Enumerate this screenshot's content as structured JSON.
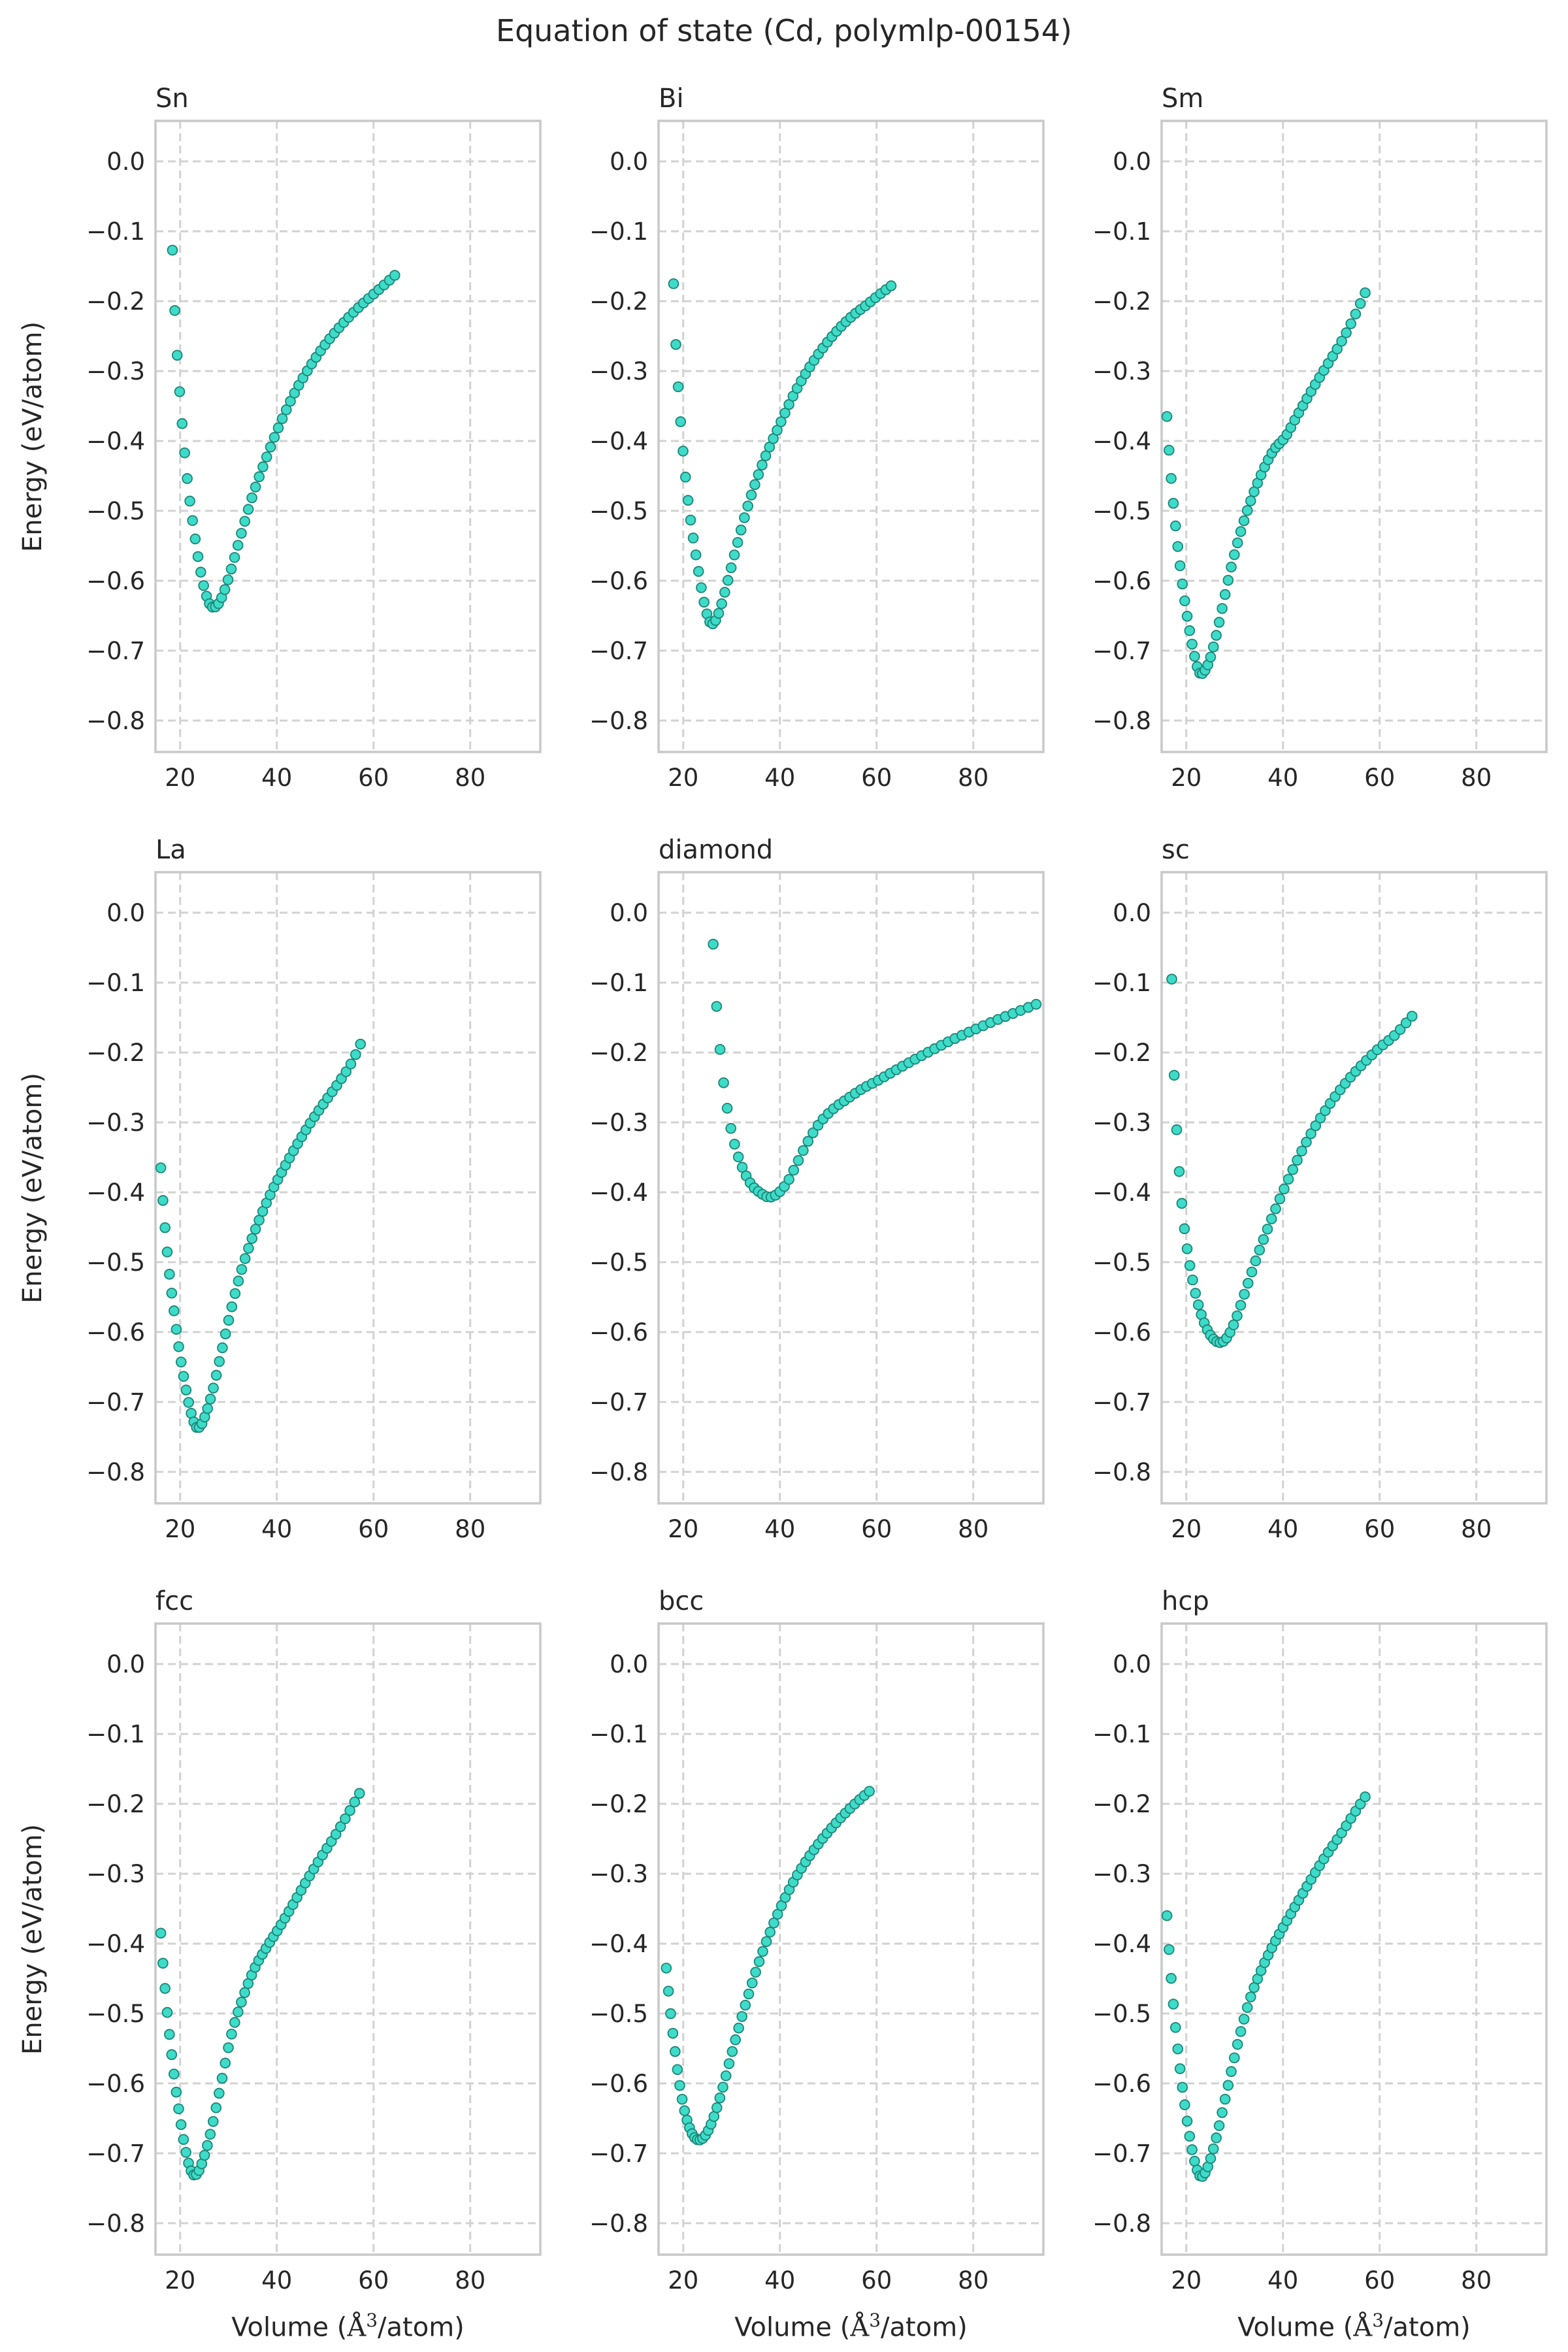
{
  "figure": {
    "title": "Equation of state (Cd, polymlp-00154)",
    "ylabel": "Energy (eV/atom)",
    "xlabel": "Volume (Å³/atom)",
    "xlabel_pre": "Volume (",
    "xlabel_ang": "Å",
    "xlabel_sup": "3",
    "xlabel_post": "/atom)"
  },
  "axes": {
    "xlim": [
      14.9,
      94.5
    ],
    "ylim_top": 0.058,
    "ylim_bottom": -0.845,
    "x_ticks": [
      20,
      40,
      60,
      80
    ],
    "x_tick_labels": [
      "20",
      "40",
      "60",
      "80"
    ],
    "y_ticks": [
      0.0,
      -0.1,
      -0.2,
      -0.3,
      -0.4,
      -0.5,
      -0.6,
      -0.7,
      -0.8
    ],
    "y_tick_labels": [
      "0.0",
      "−0.1",
      "−0.2",
      "−0.3",
      "−0.4",
      "−0.5",
      "−0.6",
      "−0.7",
      "−0.8"
    ],
    "grid": true,
    "grid_color": "#d2d2d2",
    "spine_color": "#c9c9c9",
    "text_color": "#262626"
  },
  "style": {
    "marker_fill": "#3EDBC8",
    "marker_edge": "#1B8577",
    "marker_radius": 7.4,
    "n_markers": 60,
    "marker_spacing": "uniform in cube root of volume"
  },
  "chart_data": [
    {
      "type": "scatter",
      "title": "Sn",
      "points": [
        [
          18.4,
          -0.127
        ],
        [
          18.9,
          -0.215
        ],
        [
          19.5,
          -0.29
        ],
        [
          20.2,
          -0.357
        ],
        [
          21.0,
          -0.422
        ],
        [
          21.9,
          -0.48
        ],
        [
          22.9,
          -0.53
        ],
        [
          23.9,
          -0.574
        ],
        [
          25.0,
          -0.611
        ],
        [
          26.0,
          -0.632
        ],
        [
          26.8,
          -0.638
        ],
        [
          27.8,
          -0.634
        ],
        [
          29.0,
          -0.617
        ],
        [
          30.5,
          -0.585
        ],
        [
          32.5,
          -0.536
        ],
        [
          35.0,
          -0.478
        ],
        [
          38.0,
          -0.421
        ],
        [
          41.0,
          -0.37
        ],
        [
          44.0,
          -0.327
        ],
        [
          47.0,
          -0.292
        ],
        [
          50.0,
          -0.262
        ],
        [
          53.0,
          -0.237
        ],
        [
          56.0,
          -0.215
        ],
        [
          59.0,
          -0.196
        ],
        [
          61.5,
          -0.181
        ],
        [
          64.4,
          -0.163
        ]
      ]
    },
    {
      "type": "scatter",
      "title": "Bi",
      "points": [
        [
          18.0,
          -0.175
        ],
        [
          18.4,
          -0.25
        ],
        [
          18.9,
          -0.315
        ],
        [
          19.5,
          -0.376
        ],
        [
          20.2,
          -0.432
        ],
        [
          21.0,
          -0.485
        ],
        [
          21.9,
          -0.531
        ],
        [
          22.9,
          -0.575
        ],
        [
          23.9,
          -0.616
        ],
        [
          24.8,
          -0.645
        ],
        [
          25.7,
          -0.661
        ],
        [
          26.6,
          -0.658
        ],
        [
          27.6,
          -0.641
        ],
        [
          29.0,
          -0.606
        ],
        [
          31.0,
          -0.552
        ],
        [
          33.5,
          -0.49
        ],
        [
          36.5,
          -0.431
        ],
        [
          40.0,
          -0.376
        ],
        [
          43.0,
          -0.332
        ],
        [
          46.0,
          -0.296
        ],
        [
          49.0,
          -0.266
        ],
        [
          52.0,
          -0.241
        ],
        [
          55.0,
          -0.221
        ],
        [
          58.0,
          -0.205
        ],
        [
          60.5,
          -0.191
        ],
        [
          63.0,
          -0.178
        ]
      ]
    },
    {
      "type": "scatter",
      "title": "Sm",
      "points": [
        [
          16.0,
          -0.365
        ],
        [
          16.5,
          -0.42
        ],
        [
          17.1,
          -0.472
        ],
        [
          17.8,
          -0.523
        ],
        [
          18.6,
          -0.572
        ],
        [
          19.5,
          -0.62
        ],
        [
          20.5,
          -0.664
        ],
        [
          21.5,
          -0.701
        ],
        [
          22.3,
          -0.724
        ],
        [
          22.9,
          -0.733
        ],
        [
          23.8,
          -0.729
        ],
        [
          24.8,
          -0.714
        ],
        [
          26.0,
          -0.684
        ],
        [
          27.5,
          -0.637
        ],
        [
          29.0,
          -0.589
        ],
        [
          31.0,
          -0.536
        ],
        [
          33.0,
          -0.492
        ],
        [
          35.5,
          -0.448
        ],
        [
          38.0,
          -0.414
        ],
        [
          40.5,
          -0.394
        ],
        [
          43.0,
          -0.363
        ],
        [
          46.0,
          -0.327
        ],
        [
          49.0,
          -0.293
        ],
        [
          52.0,
          -0.259
        ],
        [
          54.5,
          -0.226
        ],
        [
          57.0,
          -0.188
        ]
      ]
    },
    {
      "type": "scatter",
      "title": "La",
      "points": [
        [
          16.0,
          -0.365
        ],
        [
          16.5,
          -0.418
        ],
        [
          17.1,
          -0.468
        ],
        [
          17.8,
          -0.518
        ],
        [
          18.7,
          -0.568
        ],
        [
          19.6,
          -0.616
        ],
        [
          20.6,
          -0.659
        ],
        [
          21.7,
          -0.699
        ],
        [
          22.7,
          -0.726
        ],
        [
          23.5,
          -0.737
        ],
        [
          24.5,
          -0.731
        ],
        [
          25.5,
          -0.713
        ],
        [
          26.8,
          -0.682
        ],
        [
          28.3,
          -0.636
        ],
        [
          30.0,
          -0.584
        ],
        [
          32.0,
          -0.528
        ],
        [
          34.0,
          -0.483
        ],
        [
          36.5,
          -0.437
        ],
        [
          39.0,
          -0.398
        ],
        [
          41.5,
          -0.365
        ],
        [
          44.0,
          -0.334
        ],
        [
          47.0,
          -0.3
        ],
        [
          50.0,
          -0.27
        ],
        [
          53.0,
          -0.241
        ],
        [
          55.5,
          -0.214
        ],
        [
          57.3,
          -0.188
        ]
      ]
    },
    {
      "type": "scatter",
      "title": "diamond",
      "points": [
        [
          26.2,
          -0.045
        ],
        [
          26.7,
          -0.112
        ],
        [
          27.4,
          -0.178
        ],
        [
          28.3,
          -0.24
        ],
        [
          29.4,
          -0.292
        ],
        [
          30.7,
          -0.333
        ],
        [
          32.2,
          -0.364
        ],
        [
          34.0,
          -0.388
        ],
        [
          36.0,
          -0.401
        ],
        [
          37.8,
          -0.407
        ],
        [
          39.5,
          -0.402
        ],
        [
          41.5,
          -0.386
        ],
        [
          43.5,
          -0.359
        ],
        [
          45.5,
          -0.331
        ],
        [
          48.0,
          -0.303
        ],
        [
          51.0,
          -0.281
        ],
        [
          54.0,
          -0.266
        ],
        [
          57.0,
          -0.252
        ],
        [
          60.0,
          -0.241
        ],
        [
          65.0,
          -0.221
        ],
        [
          70.0,
          -0.202
        ],
        [
          75.0,
          -0.184
        ],
        [
          80.0,
          -0.168
        ],
        [
          85.0,
          -0.153
        ],
        [
          89.0,
          -0.142
        ],
        [
          93.0,
          -0.131
        ]
      ]
    },
    {
      "type": "scatter",
      "title": "sc",
      "points": [
        [
          17.0,
          -0.095
        ],
        [
          17.3,
          -0.19
        ],
        [
          17.75,
          -0.272
        ],
        [
          18.3,
          -0.345
        ],
        [
          18.9,
          -0.402
        ],
        [
          19.6,
          -0.451
        ],
        [
          20.4,
          -0.491
        ],
        [
          21.3,
          -0.525
        ],
        [
          22.3,
          -0.556
        ],
        [
          23.4,
          -0.581
        ],
        [
          24.6,
          -0.6
        ],
        [
          25.8,
          -0.611
        ],
        [
          27.0,
          -0.615
        ],
        [
          28.3,
          -0.609
        ],
        [
          30.0,
          -0.586
        ],
        [
          32.0,
          -0.546
        ],
        [
          34.5,
          -0.495
        ],
        [
          37.0,
          -0.449
        ],
        [
          39.5,
          -0.407
        ],
        [
          42.0,
          -0.368
        ],
        [
          45.0,
          -0.326
        ],
        [
          48.0,
          -0.291
        ],
        [
          51.0,
          -0.261
        ],
        [
          54.0,
          -0.235
        ],
        [
          57.0,
          -0.213
        ],
        [
          60.0,
          -0.193
        ],
        [
          63.0,
          -0.176
        ],
        [
          66.7,
          -0.148
        ]
      ]
    },
    {
      "type": "scatter",
      "title": "fcc",
      "points": [
        [
          16.0,
          -0.385
        ],
        [
          16.4,
          -0.425
        ],
        [
          16.9,
          -0.466
        ],
        [
          17.5,
          -0.511
        ],
        [
          18.2,
          -0.556
        ],
        [
          19.0,
          -0.602
        ],
        [
          19.9,
          -0.646
        ],
        [
          20.9,
          -0.688
        ],
        [
          21.9,
          -0.718
        ],
        [
          22.8,
          -0.731
        ],
        [
          23.8,
          -0.726
        ],
        [
          24.9,
          -0.706
        ],
        [
          26.0,
          -0.679
        ],
        [
          27.0,
          -0.649
        ],
        [
          28.0,
          -0.616
        ],
        [
          29.0,
          -0.582
        ],
        [
          30.5,
          -0.533
        ],
        [
          33.0,
          -0.477
        ],
        [
          35.5,
          -0.434
        ],
        [
          38.0,
          -0.404
        ],
        [
          40.5,
          -0.377
        ],
        [
          43.0,
          -0.348
        ],
        [
          46.0,
          -0.312
        ],
        [
          49.0,
          -0.278
        ],
        [
          52.0,
          -0.246
        ],
        [
          54.5,
          -0.217
        ],
        [
          57.1,
          -0.185
        ]
      ]
    },
    {
      "type": "scatter",
      "title": "bcc",
      "points": [
        [
          16.5,
          -0.435
        ],
        [
          16.8,
          -0.457
        ],
        [
          17.2,
          -0.487
        ],
        [
          17.7,
          -0.519
        ],
        [
          18.3,
          -0.553
        ],
        [
          19.0,
          -0.59
        ],
        [
          19.9,
          -0.627
        ],
        [
          20.9,
          -0.655
        ],
        [
          22.0,
          -0.674
        ],
        [
          23.2,
          -0.681
        ],
        [
          24.4,
          -0.676
        ],
        [
          25.6,
          -0.661
        ],
        [
          27.0,
          -0.634
        ],
        [
          28.5,
          -0.598
        ],
        [
          30.0,
          -0.558
        ],
        [
          32.0,
          -0.508
        ],
        [
          34.0,
          -0.462
        ],
        [
          36.0,
          -0.42
        ],
        [
          38.0,
          -0.383
        ],
        [
          40.5,
          -0.343
        ],
        [
          43.0,
          -0.309
        ],
        [
          45.5,
          -0.281
        ],
        [
          48.0,
          -0.257
        ],
        [
          50.5,
          -0.236
        ],
        [
          53.0,
          -0.217
        ],
        [
          55.5,
          -0.2
        ],
        [
          58.5,
          -0.182
        ]
      ]
    },
    {
      "type": "scatter",
      "title": "hcp",
      "points": [
        [
          16.0,
          -0.36
        ],
        [
          16.4,
          -0.405
        ],
        [
          16.9,
          -0.452
        ],
        [
          17.5,
          -0.5
        ],
        [
          18.2,
          -0.548
        ],
        [
          19.0,
          -0.595
        ],
        [
          19.9,
          -0.641
        ],
        [
          20.9,
          -0.684
        ],
        [
          21.9,
          -0.716
        ],
        [
          22.9,
          -0.733
        ],
        [
          23.9,
          -0.728
        ],
        [
          25.0,
          -0.708
        ],
        [
          26.2,
          -0.678
        ],
        [
          27.6,
          -0.636
        ],
        [
          29.2,
          -0.586
        ],
        [
          31.0,
          -0.533
        ],
        [
          33.0,
          -0.483
        ],
        [
          35.5,
          -0.438
        ],
        [
          38.0,
          -0.402
        ],
        [
          40.5,
          -0.371
        ],
        [
          43.0,
          -0.341
        ],
        [
          46.0,
          -0.306
        ],
        [
          49.0,
          -0.273
        ],
        [
          52.0,
          -0.243
        ],
        [
          54.5,
          -0.216
        ],
        [
          57.0,
          -0.19
        ]
      ]
    }
  ]
}
